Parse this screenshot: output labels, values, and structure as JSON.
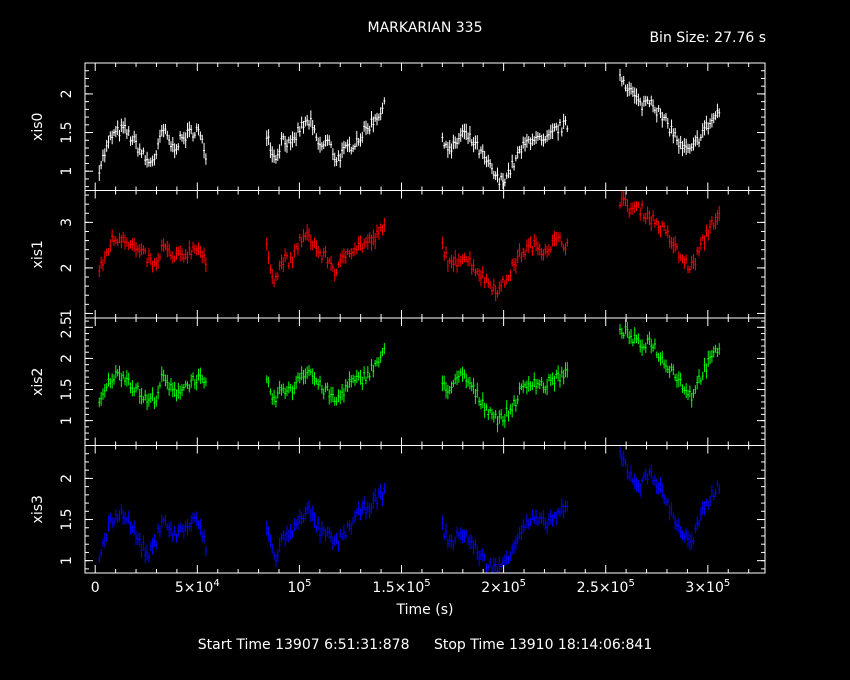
{
  "header": {
    "title": "MARKARIAN 335",
    "bin_size": "Bin Size: 27.76 s"
  },
  "footer": {
    "start_time": "Start Time 13907  6:51:31:878",
    "stop_time": "Stop Time 13910 18:14:06:841"
  },
  "colors": {
    "background": "#000000",
    "axes": "#ffffff",
    "xis0": "#ffffff",
    "xis1": "#ff0000",
    "xis2": "#00ff00",
    "xis3": "#0000ff"
  },
  "chart_data": {
    "type": "scatter",
    "title": "MARKARIAN 335",
    "xlabel": "Time (s)",
    "xlim": [
      -5000,
      328000
    ],
    "x_ticks": [
      {
        "v": 0,
        "label": "0"
      },
      {
        "v": 50000,
        "label": "5×10",
        "exp": "4"
      },
      {
        "v": 100000,
        "label": "10",
        "exp": "5"
      },
      {
        "v": 150000,
        "label": "1.5×10",
        "exp": "5"
      },
      {
        "v": 200000,
        "label": "2×10",
        "exp": "5"
      },
      {
        "v": 250000,
        "label": "2.5×10",
        "exp": "5"
      },
      {
        "v": 300000,
        "label": "3×10",
        "exp": "5"
      }
    ],
    "panels": [
      {
        "name": "xis0",
        "ylabel": "xis0",
        "color": "#ffffff",
        "ylim": [
          0.75,
          2.4
        ],
        "yticks": [
          1,
          1.5,
          2
        ],
        "ytick_labels": [
          "1",
          "1.5",
          "2"
        ],
        "segments": [
          {
            "x": [
              2000,
              8000,
              14000,
              20000,
              26000,
              30000,
              33000,
              38000,
              44000,
              50000,
              55000
            ],
            "y": [
              1.05,
              1.45,
              1.55,
              1.35,
              1.1,
              1.2,
              1.55,
              1.3,
              1.45,
              1.55,
              1.15
            ]
          },
          {
            "x": [
              84000,
              88000,
              92000,
              96000,
              100000,
              105000,
              110000,
              114000,
              118000,
              124000,
              130000,
              136000,
              142000
            ],
            "y": [
              1.5,
              1.15,
              1.45,
              1.3,
              1.55,
              1.65,
              1.3,
              1.4,
              1.15,
              1.3,
              1.45,
              1.65,
              1.85
            ]
          },
          {
            "x": [
              170000,
              174000,
              180000,
              186000,
              192000,
              198000,
              203000,
              208000,
              214000,
              220000,
              226000,
              232000
            ],
            "y": [
              1.45,
              1.25,
              1.5,
              1.35,
              1.1,
              0.85,
              1.0,
              1.25,
              1.45,
              1.35,
              1.55,
              1.6
            ]
          },
          {
            "x": [
              257000,
              262000,
              267000,
              272000,
              277000,
              282000,
              287000,
              292000,
              297000,
              302000,
              306000
            ],
            "y": [
              2.25,
              2.05,
              1.85,
              1.95,
              1.7,
              1.55,
              1.3,
              1.25,
              1.5,
              1.65,
              1.8
            ]
          }
        ]
      },
      {
        "name": "xis1",
        "ylabel": "xis1",
        "color": "#ff0000",
        "ylim": [
          0.9,
          3.7
        ],
        "yticks": [
          1,
          2,
          3
        ],
        "ytick_labels": [
          "1",
          "2",
          "3"
        ],
        "segments": [
          {
            "x": [
              2000,
              8000,
              14000,
              20000,
              26000,
              30000,
              33000,
              38000,
              44000,
              50000,
              55000
            ],
            "y": [
              1.9,
              2.6,
              2.7,
              2.4,
              2.2,
              2.0,
              2.5,
              2.2,
              2.3,
              2.5,
              2.0
            ]
          },
          {
            "x": [
              84000,
              88000,
              92000,
              96000,
              100000,
              105000,
              110000,
              114000,
              118000,
              124000,
              130000,
              136000,
              142000
            ],
            "y": [
              2.4,
              1.7,
              2.2,
              2.1,
              2.6,
              2.7,
              2.3,
              2.2,
              1.9,
              2.4,
              2.5,
              2.6,
              2.9
            ]
          },
          {
            "x": [
              170000,
              174000,
              180000,
              186000,
              192000,
              198000,
              203000,
              208000,
              214000,
              220000,
              226000,
              232000
            ],
            "y": [
              2.5,
              2.0,
              2.3,
              2.0,
              1.7,
              1.5,
              1.9,
              2.3,
              2.5,
              2.4,
              2.6,
              2.5
            ]
          },
          {
            "x": [
              257000,
              262000,
              267000,
              272000,
              277000,
              282000,
              287000,
              292000,
              297000,
              302000,
              306000
            ],
            "y": [
              3.5,
              3.3,
              3.3,
              3.1,
              2.9,
              2.6,
              2.2,
              2.0,
              2.5,
              3.0,
              3.1
            ]
          }
        ]
      },
      {
        "name": "xis2",
        "ylabel": "xis2",
        "color": "#00ff00",
        "ylim": [
          0.6,
          2.65
        ],
        "yticks": [
          1,
          1.5,
          2,
          2.5
        ],
        "ytick_labels": [
          "1",
          "1.5",
          "2",
          "2.5"
        ],
        "segments": [
          {
            "x": [
              2000,
              8000,
              14000,
              20000,
              26000,
              30000,
              33000,
              38000,
              44000,
              50000,
              55000
            ],
            "y": [
              1.25,
              1.7,
              1.75,
              1.5,
              1.3,
              1.4,
              1.7,
              1.45,
              1.55,
              1.7,
              1.5
            ]
          },
          {
            "x": [
              84000,
              88000,
              92000,
              96000,
              100000,
              105000,
              110000,
              114000,
              118000,
              124000,
              130000,
              136000,
              142000
            ],
            "y": [
              1.6,
              1.3,
              1.55,
              1.45,
              1.75,
              1.8,
              1.55,
              1.45,
              1.3,
              1.6,
              1.65,
              1.85,
              2.1
            ]
          },
          {
            "x": [
              170000,
              174000,
              180000,
              186000,
              192000,
              198000,
              203000,
              208000,
              214000,
              220000,
              226000,
              232000
            ],
            "y": [
              1.6,
              1.5,
              1.75,
              1.45,
              1.2,
              1.0,
              1.15,
              1.45,
              1.65,
              1.55,
              1.7,
              1.75
            ]
          },
          {
            "x": [
              257000,
              262000,
              267000,
              272000,
              277000,
              282000,
              287000,
              292000,
              297000,
              302000,
              306000
            ],
            "y": [
              2.5,
              2.35,
              2.2,
              2.3,
              2.0,
              1.85,
              1.6,
              1.4,
              1.75,
              2.0,
              2.2
            ]
          }
        ]
      },
      {
        "name": "xis3",
        "ylabel": "xis3",
        "color": "#0000ff",
        "ylim": [
          0.85,
          2.4
        ],
        "yticks": [
          1,
          1.5,
          2
        ],
        "ytick_labels": [
          "1",
          "1.5",
          "2"
        ],
        "segments": [
          {
            "x": [
              2000,
              8000,
              14000,
              20000,
              26000,
              30000,
              33000,
              38000,
              44000,
              50000,
              55000
            ],
            "y": [
              1.05,
              1.5,
              1.6,
              1.3,
              1.05,
              1.25,
              1.55,
              1.3,
              1.4,
              1.5,
              1.1
            ]
          },
          {
            "x": [
              84000,
              88000,
              92000,
              96000,
              100000,
              105000,
              110000,
              114000,
              118000,
              124000,
              130000,
              136000,
              142000
            ],
            "y": [
              1.4,
              1.0,
              1.3,
              1.3,
              1.55,
              1.6,
              1.35,
              1.3,
              1.2,
              1.4,
              1.6,
              1.7,
              1.85
            ]
          },
          {
            "x": [
              170000,
              174000,
              180000,
              186000,
              192000,
              198000,
              203000,
              208000,
              214000,
              220000,
              226000,
              232000
            ],
            "y": [
              1.4,
              1.2,
              1.35,
              1.15,
              0.95,
              0.9,
              1.1,
              1.35,
              1.5,
              1.45,
              1.55,
              1.65
            ]
          },
          {
            "x": [
              257000,
              262000,
              267000,
              272000,
              277000,
              282000,
              287000,
              292000,
              297000,
              302000,
              306000
            ],
            "y": [
              2.3,
              2.05,
              1.9,
              2.1,
              1.85,
              1.6,
              1.35,
              1.2,
              1.55,
              1.8,
              1.95
            ]
          }
        ]
      }
    ]
  }
}
